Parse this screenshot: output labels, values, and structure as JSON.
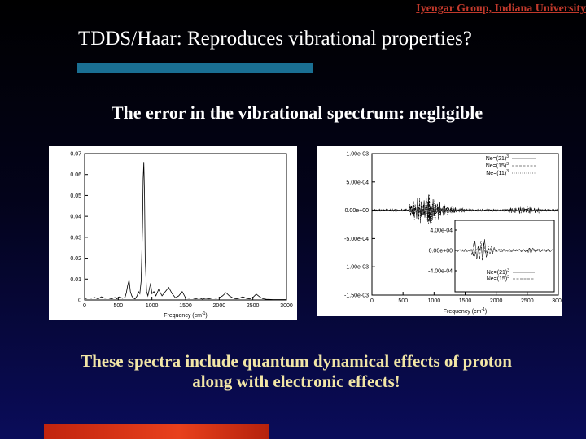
{
  "header": {
    "affiliation": "Iyengar Group, Indiana University"
  },
  "slide": {
    "title": "TDDS/Haar: Reproduces vibrational properties?",
    "subtitle": "The error in the vibrational spectrum: negligible",
    "conclusion_line1": "These spectra include quantum dynamical effects of proton",
    "conclusion_line2": "along with electronic effects!"
  },
  "colors": {
    "title_bar": "#1a6f93",
    "bottom_bar": "#d6300f",
    "header_link": "#c0392b",
    "conclusion_text": "#f2e6a6"
  },
  "chart_data": [
    {
      "type": "line",
      "xlabel": "Frequency (cm",
      "xlabel_superscript": "-1",
      "xlabel_suffix": ")",
      "xlim": [
        0,
        3000
      ],
      "ylim": [
        0,
        0.07
      ],
      "x_ticks": [
        "0",
        "500",
        "1000",
        "1500",
        "2000",
        "2500",
        "3000"
      ],
      "y_ticks": [
        "0",
        "0.01",
        "0.02",
        "0.03",
        "0.04",
        "0.05",
        "0.06",
        "0.07"
      ],
      "series": [
        {
          "x": [
            0,
            50,
            100,
            150,
            200,
            250,
            300,
            350,
            400,
            450,
            480,
            520,
            560,
            600,
            620,
            640,
            660,
            680,
            700,
            720,
            750,
            780,
            800,
            820,
            840,
            860,
            870,
            880,
            890,
            900,
            920,
            940,
            960,
            980,
            1000,
            1030,
            1060,
            1100,
            1150,
            1200,
            1250,
            1300,
            1350,
            1400,
            1450,
            1500,
            1550,
            1600,
            1650,
            1700,
            1750,
            1800,
            1850,
            1900,
            1950,
            2000,
            2050,
            2100,
            2150,
            2200,
            2250,
            2300,
            2350,
            2400,
            2450,
            2500,
            2550,
            2600,
            2650,
            2700,
            2800,
            2900,
            3000
          ],
          "y": [
            0.0005,
            0.001,
            0.0008,
            0.0012,
            0.0005,
            0.0015,
            0.0008,
            0.001,
            0.0005,
            0.0012,
            0.0006,
            0.0015,
            0.0008,
            0.0012,
            0.0035,
            0.007,
            0.0095,
            0.004,
            0.002,
            0.001,
            0.0005,
            0.002,
            0.004,
            0.003,
            0.009,
            0.035,
            0.058,
            0.066,
            0.05,
            0.02,
            0.004,
            0.002,
            0.005,
            0.008,
            0.003,
            0.004,
            0.002,
            0.005,
            0.002,
            0.004,
            0.006,
            0.003,
            0.001,
            0.002,
            0.004,
            0.001,
            0.0008,
            0.001,
            0.0005,
            0.001,
            0.0004,
            0.0008,
            0.0005,
            0.001,
            0.0008,
            0.001,
            0.002,
            0.0035,
            0.002,
            0.001,
            0.0005,
            0.0008,
            0.0015,
            0.0008,
            0.0005,
            0.0012,
            0.0028,
            0.0015,
            0.0006,
            0.0003,
            0.0002,
            0.0002,
            0.0002
          ]
        }
      ]
    },
    {
      "type": "line",
      "xlabel": "Frequency (cm",
      "xlabel_superscript": "-1",
      "xlabel_suffix": ")",
      "xlim": [
        0,
        3000
      ],
      "ylim": [
        -0.0015,
        0.001
      ],
      "x_ticks": [
        "0",
        "500",
        "1000",
        "1500",
        "2000",
        "2500",
        "3000"
      ],
      "y_ticks": [
        "1.00e-03",
        "5.00e-04",
        "0.00e+00",
        "-5.00e-04",
        "-1.00e-03",
        "-1.50e-03"
      ],
      "legend": [
        {
          "name": "Ne=(21)",
          "sup": "3"
        },
        {
          "name": "Ne=(15)",
          "sup": "3"
        },
        {
          "name": "Ne=(11)",
          "sup": "3"
        }
      ],
      "legend_position": "top-right",
      "inset": {
        "y_ticks": [
          "4.00e-04",
          "0.00e+00",
          "-4.00e-04"
        ],
        "legend": [
          {
            "name": "Ne=(21)",
            "sup": "3"
          },
          {
            "name": "Ne=(15)",
            "sup": "3"
          }
        ],
        "legend_position": "bottom-right"
      }
    }
  ]
}
